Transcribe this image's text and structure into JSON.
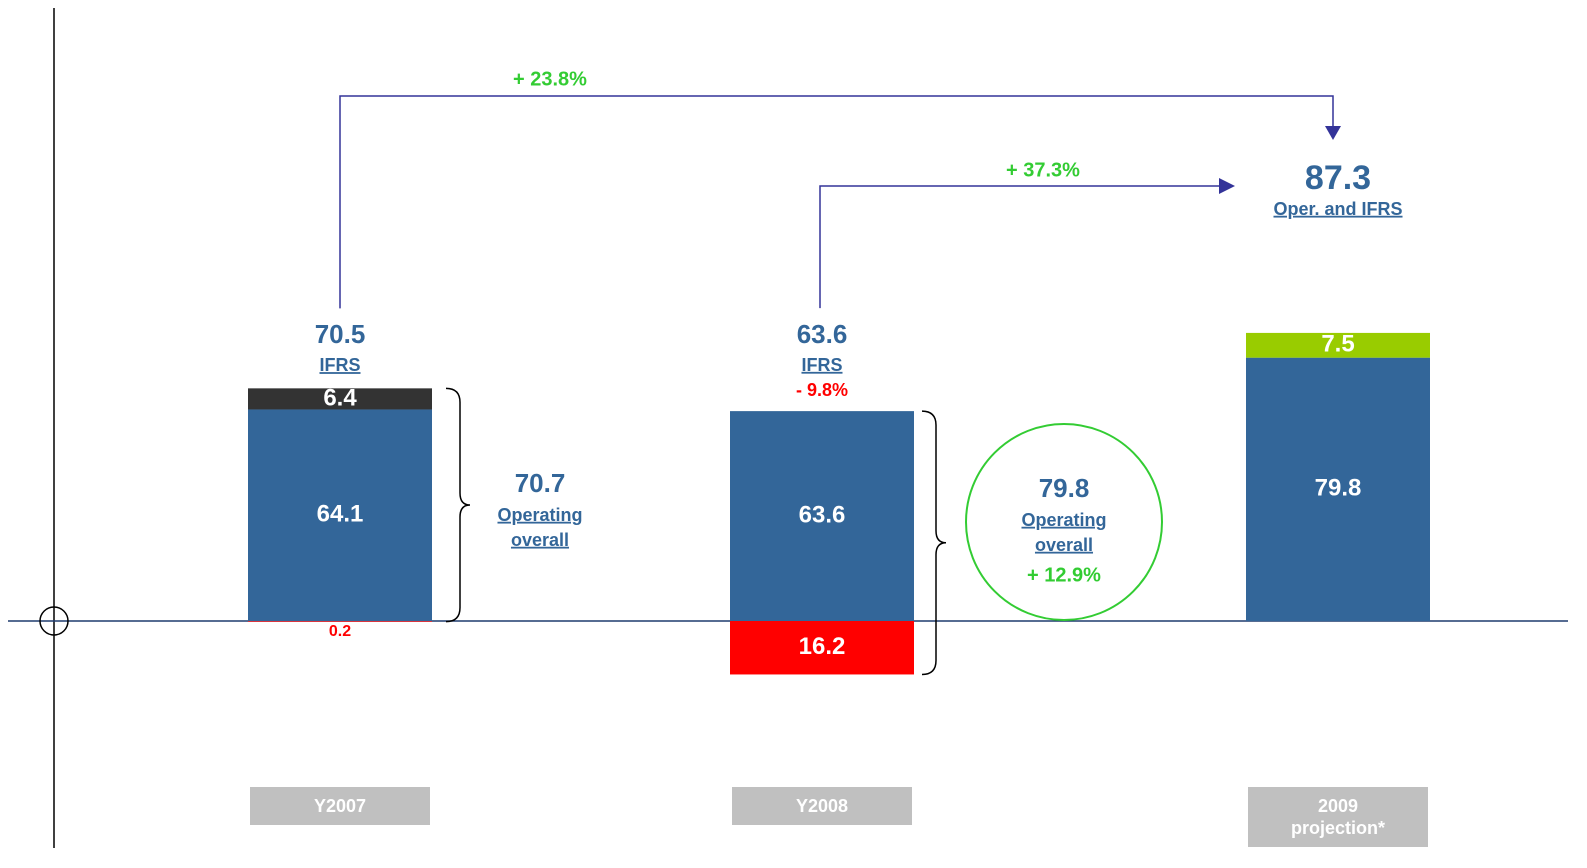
{
  "chart_data": {
    "type": "bar",
    "stacked": true,
    "categories": [
      "Y2007",
      "Y2008",
      "2009 projection*"
    ],
    "series": [
      {
        "color": "#336699",
        "values": [
          64.1,
          63.6,
          79.8
        ]
      },
      {
        "color": "#333333",
        "values": [
          6.4,
          null,
          null
        ]
      },
      {
        "color": "#99cc00",
        "values": [
          null,
          null,
          7.5
        ]
      },
      {
        "color": "#ff0000",
        "values": [
          -0.2,
          -16.2,
          null
        ],
        "value_labels": [
          "0.2",
          "16.2",
          null
        ]
      }
    ],
    "bar_notes": [
      {
        "total": "70.5",
        "caption": "IFRS"
      },
      {
        "total": "63.6",
        "caption": "IFRS",
        "change": "- 9.8%"
      },
      {
        "total": "87.3",
        "caption": "Oper. and IFRS"
      }
    ],
    "brackets": [
      {
        "total": "70.7",
        "caption_lines": [
          "Operating",
          "overall"
        ]
      },
      {
        "total": "79.8",
        "caption_lines": [
          "Operating",
          "overall"
        ],
        "change": "+ 12.9%"
      }
    ],
    "arrows": [
      {
        "label": "+ 23.8%"
      },
      {
        "label": "+ 37.3%"
      }
    ]
  }
}
